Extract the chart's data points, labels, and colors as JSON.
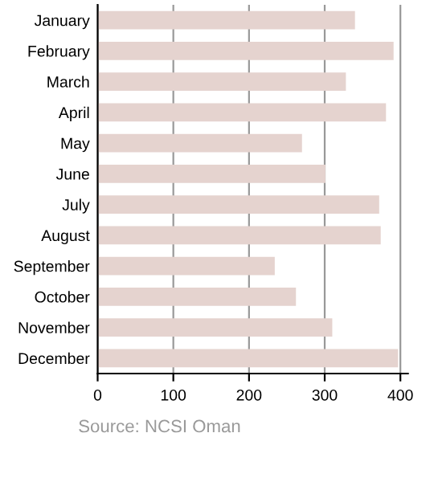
{
  "chart_data": {
    "type": "bar",
    "orientation": "horizontal",
    "categories": [
      "January",
      "February",
      "March",
      "April",
      "May",
      "June",
      "July",
      "August",
      "September",
      "October",
      "November",
      "December"
    ],
    "values": [
      340,
      391,
      328,
      381,
      270,
      301,
      372,
      374,
      234,
      262,
      310,
      397
    ],
    "color": "#e5d3cf",
    "xlim": [
      0,
      410
    ],
    "xticks": [
      0,
      100,
      200,
      300,
      400
    ],
    "grid": "x",
    "annotations": [
      "Source: NCSI Oman"
    ]
  }
}
